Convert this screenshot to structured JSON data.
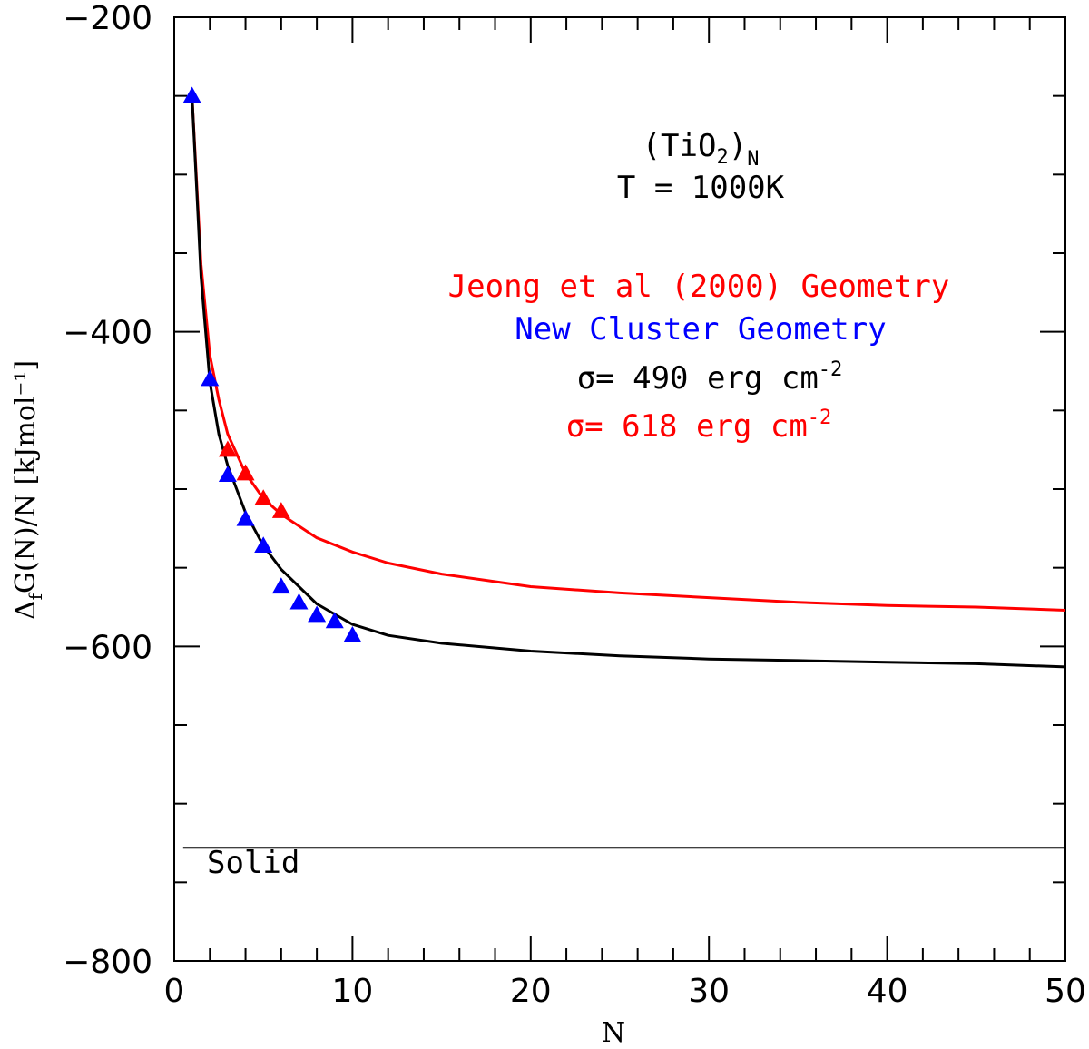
{
  "chart_data": {
    "type": "line",
    "xlabel": "N",
    "ylabel": {
      "delta": "Δ",
      "sub": "f",
      "rest": "G(N)/N [kJmol⁻¹]"
    },
    "xlim": [
      0,
      50
    ],
    "ylim": [
      -800,
      -200
    ],
    "x_ticks": [
      0,
      10,
      20,
      30,
      40,
      50
    ],
    "x_tick_labels": [
      "0",
      "10",
      "20",
      "30",
      "40",
      "50"
    ],
    "y_ticks": [
      -800,
      -600,
      -400,
      -200
    ],
    "y_tick_labels": [
      "−800",
      "−600",
      "−400",
      "−200"
    ],
    "annotations": {
      "formula_main": "(TiO",
      "formula_sub2": "2",
      "formula_close": ")",
      "formula_subN": "N",
      "temperature": "T = 1000K",
      "legend_red": "Jeong et al (2000) Geometry",
      "legend_blue": "New Cluster Geometry",
      "sigma_black_prefix": "σ= 490 erg cm",
      "sigma_black_exp": "-2",
      "sigma_red_prefix": "σ= 618 erg cm",
      "sigma_red_exp": "-2",
      "solid_label": "Solid"
    },
    "colors": {
      "red": "#ff0000",
      "blue": "#0000ff",
      "black": "#000000"
    },
    "solid_level": -728,
    "series": [
      {
        "name": "Jeong et al (2000) Geometry (points)",
        "kind": "points",
        "color": "#ff0000",
        "x": [
          3,
          4,
          5,
          6
        ],
        "y": [
          -475,
          -490,
          -506,
          -514
        ]
      },
      {
        "name": "New Cluster Geometry (points)",
        "kind": "points",
        "color": "#0000ff",
        "x": [
          1,
          2,
          3,
          4,
          5,
          6,
          7,
          8,
          9,
          10
        ],
        "y": [
          -250,
          -430,
          -491,
          -519,
          -536,
          -562,
          -572,
          -580,
          -584,
          -593
        ]
      },
      {
        "name": "σ= 618 erg cm-2 fit",
        "kind": "line",
        "color": "#ff0000",
        "x": [
          1,
          1.5,
          2,
          2.5,
          3,
          4,
          5,
          6,
          8,
          10,
          12,
          15,
          20,
          25,
          30,
          35,
          40,
          45,
          50
        ],
        "y": [
          -250,
          -357,
          -415,
          -443,
          -465,
          -490,
          -506,
          -516,
          -531,
          -540,
          -547,
          -554,
          -562,
          -566,
          -569,
          -572,
          -574,
          -575,
          -577
        ]
      },
      {
        "name": "σ= 490 erg cm-2 fit",
        "kind": "line",
        "color": "#000000",
        "x": [
          1,
          1.5,
          2,
          2.5,
          3,
          4,
          5,
          6,
          8,
          10,
          12,
          15,
          20,
          25,
          30,
          35,
          40,
          45,
          50
        ],
        "y": [
          -250,
          -365,
          -432,
          -465,
          -485,
          -515,
          -536,
          -551,
          -573,
          -586,
          -593,
          -598,
          -603,
          -606,
          -608,
          -609,
          -610,
          -611,
          -613
        ]
      }
    ]
  }
}
